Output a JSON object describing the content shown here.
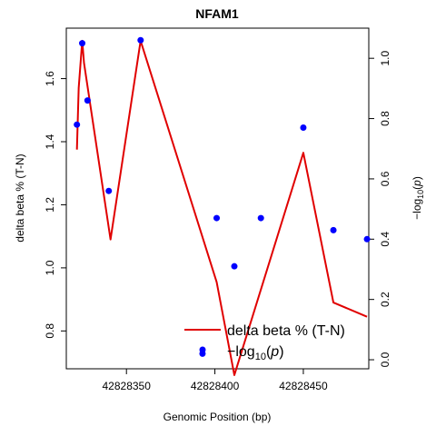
{
  "chart_data": {
    "type": "line",
    "title": "NFAM1",
    "xlabel": "Genomic Position (bp)",
    "ylabel": "delta beta % (T-N)",
    "y2label_prefix": "−log",
    "y2label_sub": "10",
    "y2label_arg": "p",
    "xlim": [
      42828316,
      42828487
    ],
    "ylim": [
      0.68,
      1.76
    ],
    "y2lim": [
      -0.03,
      1.1
    ],
    "x_ticks": [
      42828350,
      42828400,
      42828450
    ],
    "x_tick_labels": [
      "42828350",
      "42828400",
      "42828450"
    ],
    "y_ticks": [
      0.8,
      1.0,
      1.2,
      1.4,
      1.6
    ],
    "y_tick_labels": [
      "0.8",
      "1.0",
      "1.2",
      "1.4",
      "1.6"
    ],
    "y2_ticks": [
      0.0,
      0.2,
      0.4,
      0.6,
      0.8,
      1.0
    ],
    "y2_tick_labels": [
      "0.0",
      "0.2",
      "0.4",
      "0.6",
      "0.8",
      "1.0"
    ],
    "grid": false,
    "legend_position": "bottom-right",
    "series": [
      {
        "name": "delta beta % (T-N)",
        "kind": "line",
        "axis": "left",
        "color": "#e00000",
        "x": [
          42828322,
          42828323,
          42828325,
          42828326,
          42828341,
          42828358,
          42828401,
          42828411,
          42828450,
          42828467,
          42828486
        ],
        "y": [
          1.375,
          1.57,
          1.72,
          1.65,
          1.09,
          1.72,
          0.955,
          0.66,
          1.365,
          0.89,
          0.845
        ]
      },
      {
        "name": "-log10(p)",
        "legend_prefix": "−log",
        "legend_sub": "10",
        "legend_arg": "p",
        "kind": "scatter",
        "axis": "right",
        "color": "#0000ff",
        "x": [
          42828322,
          42828325,
          42828328,
          42828340,
          42828358,
          42828393,
          42828401,
          42828411,
          42828426,
          42828450,
          42828467,
          42828486
        ],
        "y": [
          0.78,
          1.05,
          0.86,
          0.56,
          1.06,
          0.02,
          0.47,
          0.31,
          0.47,
          0.77,
          0.43,
          0.4
        ]
      }
    ]
  }
}
